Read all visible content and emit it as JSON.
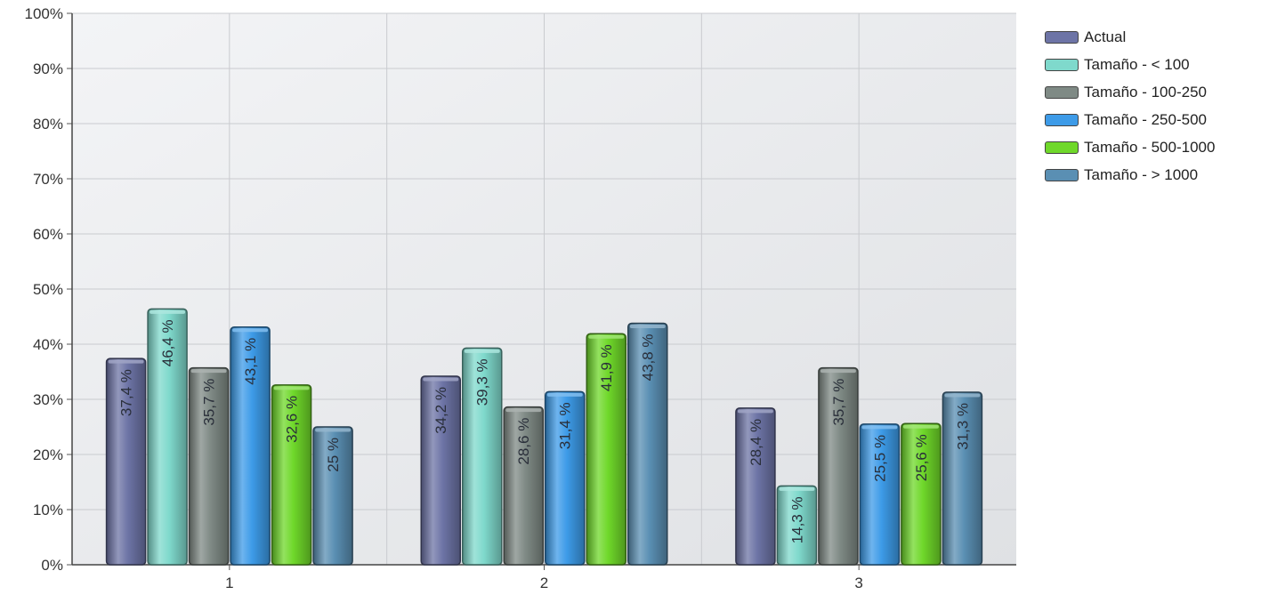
{
  "chart_data": {
    "type": "bar",
    "title": "",
    "xlabel": "",
    "ylabel": "",
    "categories": [
      "1",
      "2",
      "3"
    ],
    "ylim": [
      0,
      100
    ],
    "yticks": [
      "0%",
      "10%",
      "20%",
      "30%",
      "40%",
      "50%",
      "60%",
      "70%",
      "80%",
      "90%",
      "100%"
    ],
    "grid": true,
    "legend_position": "right",
    "series": [
      {
        "name": "Actual",
        "color": "#6d74a6",
        "values": [
          37.4,
          34.2,
          28.4
        ],
        "labels": [
          "37,4 %",
          "34,2 %",
          "28,4 %"
        ]
      },
      {
        "name": "Tamaño - < 100",
        "color": "#7fd9cc",
        "values": [
          46.4,
          39.3,
          14.3
        ],
        "labels": [
          "46,4 %",
          "39,3 %",
          "14,3 %"
        ]
      },
      {
        "name": "Tamaño - 100-250",
        "color": "#7f8a85",
        "values": [
          35.7,
          28.6,
          35.7
        ],
        "labels": [
          "35,7 %",
          "28,6 %",
          "35,7 %"
        ]
      },
      {
        "name": "Tamaño - 250-500",
        "color": "#3d9be8",
        "values": [
          43.1,
          31.4,
          25.5
        ],
        "labels": [
          "43,1 %",
          "31,4 %",
          "25,5 %"
        ]
      },
      {
        "name": "Tamaño - 500-1000",
        "color": "#6fd82a",
        "values": [
          32.6,
          41.9,
          25.6
        ],
        "labels": [
          "32,6 %",
          "41,9 %",
          "25,6 %"
        ]
      },
      {
        "name": "Tamaño - > 1000",
        "color": "#5a8fb3",
        "values": [
          25,
          43.8,
          31.3
        ],
        "labels": [
          "25 %",
          "43,8 %",
          "31,3 %"
        ]
      }
    ]
  }
}
